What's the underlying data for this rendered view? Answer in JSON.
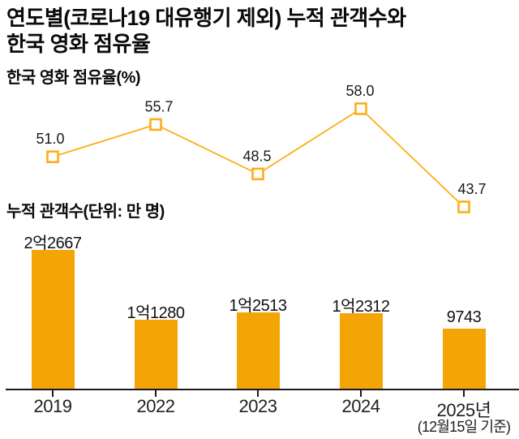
{
  "title": {
    "line1": "연도별(코로나19 대유행기 제외) 누적 관객수와",
    "line2": "한국 영화 점유율"
  },
  "colors": {
    "bar": "#F4A506",
    "line": "#FCAF17",
    "marker_fill": "#FFFFFF",
    "text": "#111111",
    "axis": "#1A1A1A"
  },
  "chart_data": [
    {
      "type": "line",
      "title": "한국 영화 점유율(%)",
      "categories": [
        "2019",
        "2022",
        "2023",
        "2024",
        "2025년"
      ],
      "values": [
        51.0,
        55.7,
        48.5,
        58.0,
        43.7
      ],
      "labels": [
        "51.0",
        "55.7",
        "48.5",
        "58.0",
        "43.7"
      ],
      "marker": "hollow-square",
      "grid": false,
      "axes_hidden": true,
      "ylim": [
        40,
        62
      ]
    },
    {
      "type": "bar",
      "title": "누적 관객수(단위: 만 명)",
      "categories": [
        "2019",
        "2022",
        "2023",
        "2024",
        "2025년"
      ],
      "category_note": "(12월15일 기준)",
      "category_note_index": 4,
      "values": [
        22667,
        11280,
        12513,
        12312,
        9743
      ],
      "labels": [
        "2억2667",
        "1억1280",
        "1억2513",
        "1억2312",
        "9743"
      ],
      "grid": false,
      "baseline_axis": true
    }
  ]
}
